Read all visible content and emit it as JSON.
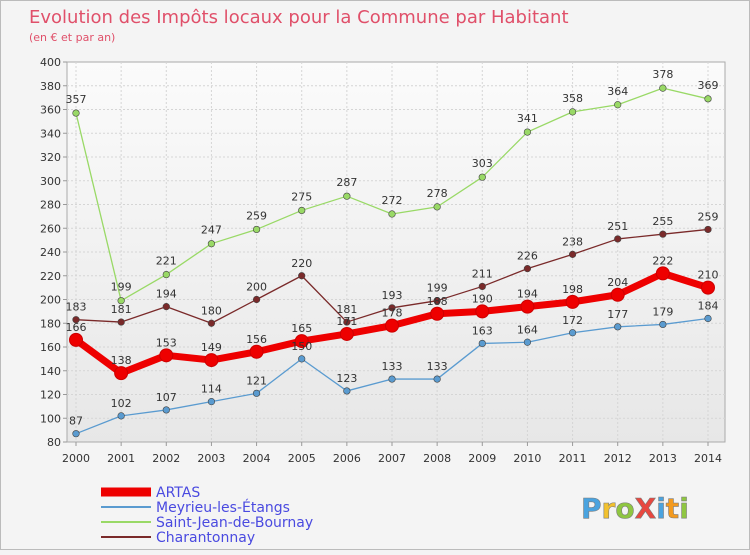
{
  "chart_data": {
    "type": "line",
    "title": "Evolution des Impôts locaux pour la Commune par Habitant",
    "subtitle": "(en € et par an)",
    "x": [
      "2000",
      "2001",
      "2002",
      "2003",
      "2004",
      "2005",
      "2006",
      "2007",
      "2008",
      "2009",
      "2010",
      "2011",
      "2012",
      "2013",
      "2014"
    ],
    "ylim": [
      80,
      400
    ],
    "yticks": [
      80,
      100,
      120,
      140,
      160,
      180,
      200,
      220,
      240,
      260,
      280,
      300,
      320,
      340,
      360,
      380,
      400
    ],
    "grid": true,
    "legend_position": "bottom-left",
    "series": [
      {
        "name": "ARTAS",
        "color": "#ee0000",
        "values": [
          166,
          138,
          153,
          149,
          156,
          165,
          171,
          178,
          188,
          190,
          194,
          198,
          204,
          222,
          210
        ]
      },
      {
        "name": "Meyrieu-les-Étangs",
        "color": "#5a9bd0",
        "values": [
          87,
          102,
          107,
          114,
          121,
          150,
          123,
          133,
          133,
          163,
          164,
          172,
          177,
          179,
          184
        ]
      },
      {
        "name": "Saint-Jean-de-Bournay",
        "color": "#99d966",
        "values": [
          357,
          199,
          221,
          247,
          259,
          275,
          287,
          272,
          278,
          303,
          341,
          358,
          364,
          378,
          369
        ]
      },
      {
        "name": "Charantonnay",
        "color": "#7a2a2a",
        "values": [
          183,
          181,
          194,
          180,
          200,
          220,
          181,
          193,
          199,
          211,
          226,
          238,
          251,
          255,
          259
        ]
      }
    ]
  },
  "logo": {
    "text": "ProXiti"
  }
}
